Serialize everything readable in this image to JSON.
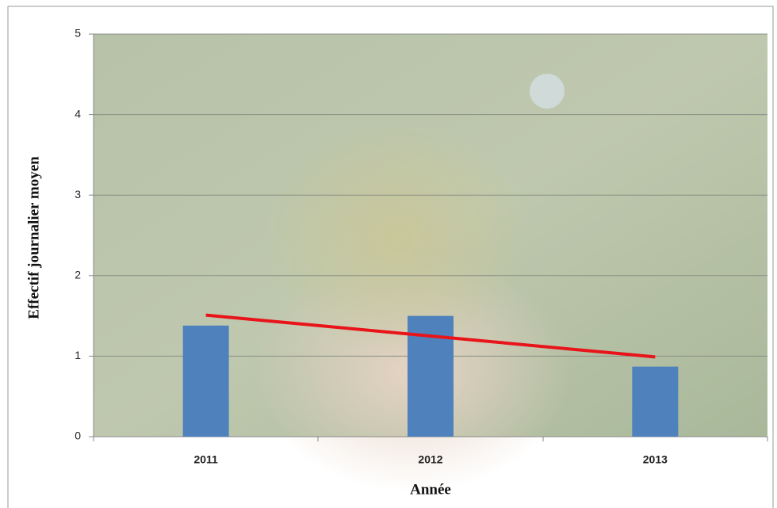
{
  "chart_data": {
    "type": "bar",
    "x_label": "Année",
    "y_label": "Effectif journalier moyen",
    "categories": [
      "2011",
      "2012",
      "2013"
    ],
    "values": [
      1.38,
      1.5,
      0.87
    ],
    "color": "#4f81bd",
    "trend": {
      "color": "#e8141a",
      "values": [
        1.51,
        1.25,
        0.99
      ]
    },
    "ylim": [
      0,
      5
    ],
    "yticks": [
      0,
      1,
      2,
      3,
      4,
      5
    ],
    "grid": true
  }
}
